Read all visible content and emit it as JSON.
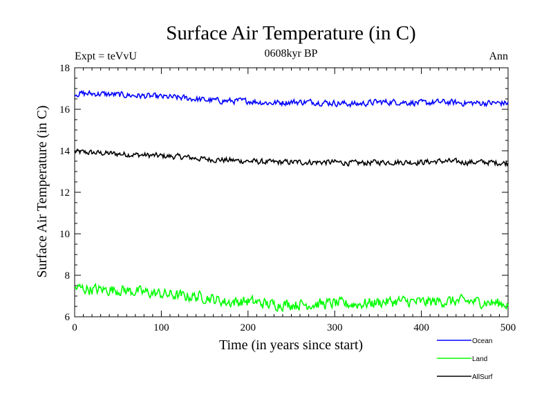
{
  "chart_data": {
    "type": "line",
    "title": "Surface Air Temperature (in C)",
    "subtitle": "0608kyr BP",
    "left_label": "Expt = teVvU",
    "right_label": "Ann",
    "xlabel": "Time (in years since start)",
    "ylabel": "Surface Air Temperature (in C)",
    "xlim": [
      0,
      500
    ],
    "ylim": [
      6,
      18
    ],
    "x_ticks": [
      0,
      100,
      200,
      300,
      400,
      500
    ],
    "y_ticks": [
      6,
      8,
      10,
      12,
      14,
      16,
      18
    ],
    "grid": false,
    "legend_position": "bottom-right, outside plot",
    "x": [
      0,
      25,
      50,
      75,
      100,
      125,
      150,
      175,
      200,
      225,
      250,
      275,
      300,
      325,
      350,
      375,
      400,
      425,
      450,
      475,
      500
    ],
    "series": [
      {
        "name": "Ocean",
        "color": "#0000ff",
        "values": [
          16.75,
          16.75,
          16.7,
          16.65,
          16.6,
          16.55,
          16.45,
          16.4,
          16.4,
          16.3,
          16.35,
          16.35,
          16.3,
          16.25,
          16.35,
          16.35,
          16.3,
          16.35,
          16.3,
          16.3,
          16.3
        ]
      },
      {
        "name": "Land",
        "color": "#00ff00",
        "values": [
          7.4,
          7.3,
          7.3,
          7.2,
          7.1,
          7.0,
          6.95,
          6.7,
          6.75,
          6.6,
          6.6,
          6.6,
          6.65,
          6.6,
          6.7,
          6.75,
          6.7,
          6.75,
          6.75,
          6.7,
          6.6
        ]
      },
      {
        "name": "AllSurf",
        "color": "#000000",
        "values": [
          13.95,
          13.9,
          13.85,
          13.8,
          13.75,
          13.7,
          13.6,
          13.55,
          13.5,
          13.45,
          13.45,
          13.45,
          13.45,
          13.4,
          13.45,
          13.45,
          13.45,
          13.5,
          13.45,
          13.45,
          13.4
        ]
      }
    ]
  }
}
